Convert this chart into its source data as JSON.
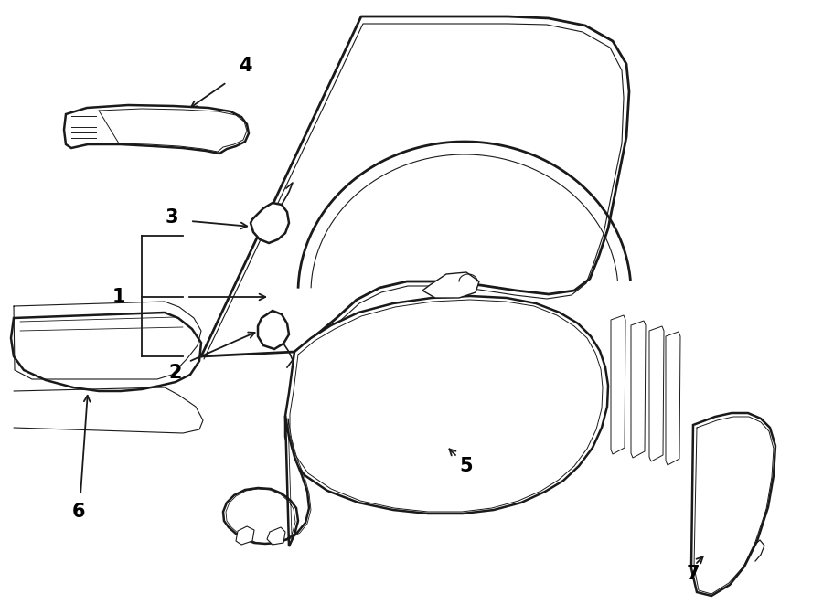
{
  "bg_color": "#ffffff",
  "line_color": "#1a1a1a",
  "figsize": [
    9.0,
    6.61
  ],
  "dpi": 100
}
